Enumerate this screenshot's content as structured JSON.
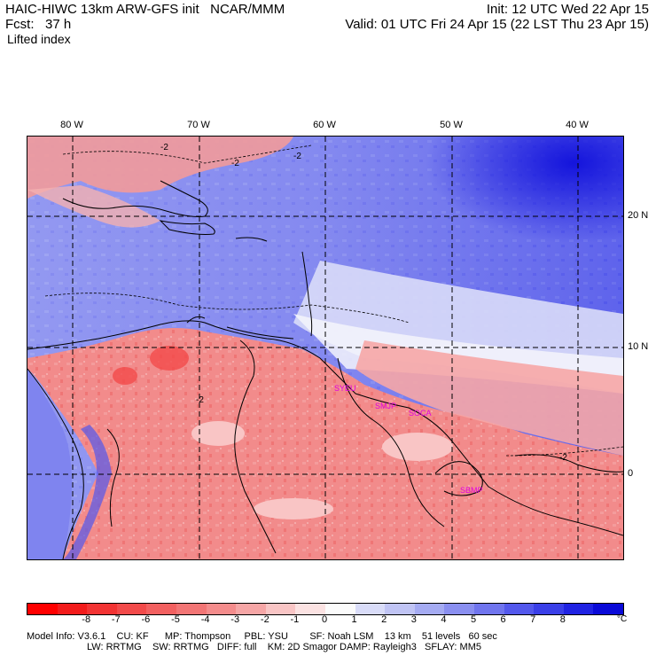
{
  "header": {
    "title": "HAIC-HIWC 13km ARW-GFS init   NCAR/MMM",
    "forecast": "Fcst:   37 h",
    "field": "Lifted index",
    "init": "Init: 12 UTC Wed 22 Apr 15",
    "valid": "Valid: 01 UTC Fri 24 Apr 15 (22 LST Thu 23 Apr 15)"
  },
  "map": {
    "lon_labels": [
      "80 W",
      "70 W",
      "60 W",
      "50 W",
      "40 W"
    ],
    "lat_labels": [
      "20 N",
      "10 N",
      "0"
    ],
    "contour_label": "-2",
    "stations": [
      "SYEU",
      "SMJP",
      "SOCA",
      "SBMP"
    ],
    "colors": {
      "ocean_stable": "#6a6ef0",
      "deep_stable": "#2020e0",
      "neutral": "#f4f4fb",
      "land_unstable": "#f28a8a"
    }
  },
  "colorbar": {
    "ticks": [
      "-8",
      "-7",
      "-6",
      "-5",
      "-4",
      "-3",
      "-2",
      "-1",
      "0",
      "1",
      "2",
      "3",
      "4",
      "5",
      "6",
      "7",
      "8"
    ],
    "unit": "°C",
    "colors": [
      "#ff0000",
      "#f21b1b",
      "#f23333",
      "#f24a4a",
      "#f26060",
      "#f27575",
      "#f48c8c",
      "#f6a6a6",
      "#f9c5c5",
      "#fbe2e2",
      "#fbfbfb",
      "#d9dcf8",
      "#c0c4f4",
      "#a5abf2",
      "#8a8ff0",
      "#7075ee",
      "#5358ec",
      "#3a3fe8",
      "#2023e3",
      "#0a0ad8"
    ]
  },
  "model_info": {
    "line1": "Model Info: V3.6.1    CU: KF      MP: Thompson     PBL: YSU        SF: Noah LSM    13 km    51 levels   60 sec",
    "line2": "LW: RRTMG    SW: RRTMG   DIFF: full    KM: 2D Smagor DAMP: Rayleigh3   SFLAY: MM5"
  }
}
